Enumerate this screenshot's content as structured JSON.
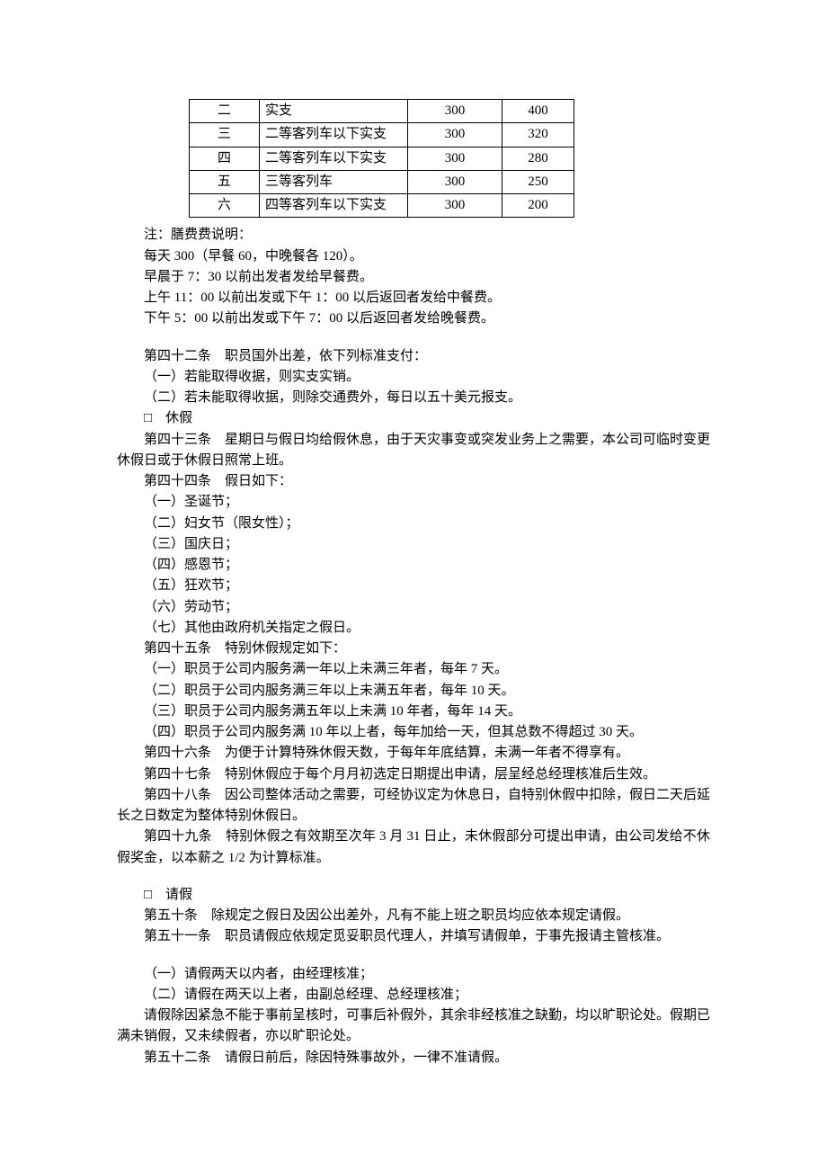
{
  "table": {
    "columns": {
      "a_width": 78,
      "b_width": 165,
      "c_width": 105,
      "d_width": 80
    },
    "rows": [
      {
        "a": "二",
        "b": "实支",
        "c": "300",
        "d": "400"
      },
      {
        "a": "三",
        "b": "二等客列车以下实支",
        "c": "300",
        "d": "320"
      },
      {
        "a": "四",
        "b": "二等客列车以下实支",
        "c": "300",
        "d": "280"
      },
      {
        "a": "五",
        "b": "三等客列车",
        "c": "300",
        "d": "250"
      },
      {
        "a": "六",
        "b": "四等客列车以下实支",
        "c": "300",
        "d": "200"
      }
    ]
  },
  "notes": [
    "注：膳费费说明：",
    "每天 300（早餐 60，中晚餐各 120）。",
    "早晨于 7：30 以前出发者发给早餐费。",
    "上午 11：00 以前出发或下午 1：00 以后返回者发给中餐费。",
    "下午 5：00 以前出发或下午 7：00 以后返回者发给晚餐费。"
  ],
  "art42": [
    "第四十二条　职员国外出差，依下列标准支付：",
    "（一）若能取得收据，则实支实销。",
    "（二）若未能取得收据，则除交通费外，每日以五十美元报支。",
    "□　休假"
  ],
  "art43": "第四十三条　星期日与假日均给假休息，由于天灾事变或突发业务上之需要，本公司可临时变更休假日或于休假日照常上班。",
  "art44": [
    "第四十四条　假日如下：",
    "（一）圣诞节；",
    "（二）妇女节（限女性）；",
    "（三）国庆日；",
    "（四）感恩节；",
    "（五）狂欢节；",
    "（六）劳动节；",
    "（七）其他由政府机关指定之假日。"
  ],
  "art45": [
    "第四十五条　特别休假规定如下：",
    "（一）职员于公司内服务满一年以上未满三年者，每年 7 天。",
    "（二）职员于公司内服务满三年以上未满五年者，每年 10 天。",
    "（三）职员于公司内服务满五年以上未满 10 年者，每年 14 天。",
    "（四）职员于公司内服务满 10 年以上者，每年加给一天，但其总数不得超过 30 天。"
  ],
  "art46": "第四十六条　为便于计算特殊休假天数，于每年年底结算，未满一年者不得享有。",
  "art47": "第四十七条　特别休假应于每个月月初选定日期提出申请，层呈经总经理核准后生效。",
  "art48": "第四十八条　因公司整体活动之需要，可经协议定为休息日，自特别休假中扣除，假日二天后延长之日数定为整体特别休假日。",
  "art49": "第四十九条　特别休假之有效期至次年 3 月 31 日止，未休假部分可提出申请，由公司发给不休假奖金，以本薪之 1/2 为计算标准。",
  "leave_header": "□　请假",
  "art50": "第五十条　除规定之假日及因公出差外，凡有不能上班之职员均应依本规定请假。",
  "art51": "第五十一条　职员请假应依规定觅妥职员代理人，并填写请假单，于事先报请主管核准。",
  "art51_items": [
    "（一）请假两天以内者，由经理核准；",
    "（二）请假在两天以上者，由副总经理、总经理核准；"
  ],
  "art51_tail": "请假除因紧急不能于事前呈核时，可事后补假外，其余非经核准之缺勤，均以旷职论处。假期已满未销假，又未续假者，亦以旷职论处。",
  "art52": "第五十二条　请假日前后，除因特殊事故外，一律不准请假。"
}
